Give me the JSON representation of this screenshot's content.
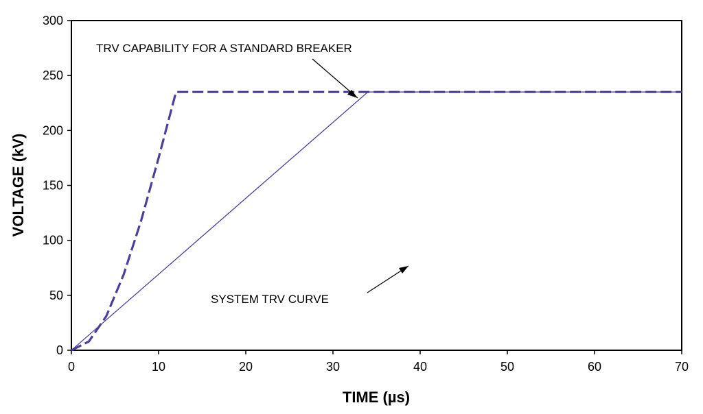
{
  "chart_data": {
    "type": "line",
    "title": "",
    "xlabel": "TIME (µs)",
    "ylabel": "VOLTAGE (kV)",
    "xlim": [
      0,
      70
    ],
    "ylim": [
      0,
      300
    ],
    "xticks": [
      "0",
      "10",
      "20",
      "30",
      "40",
      "50",
      "60",
      "70"
    ],
    "yticks": [
      "0",
      "50",
      "100",
      "150",
      "200",
      "250",
      "300"
    ],
    "grid": false,
    "legend": "none",
    "series": [
      {
        "style": "solid-thin",
        "color": "#4b3f9c",
        "x": [
          0,
          34,
          70
        ],
        "y": [
          0,
          235,
          235
        ]
      },
      {
        "style": "dashed-thick",
        "color": "#4b3f9c",
        "x": [
          0,
          2,
          4,
          6,
          8,
          10,
          12,
          14,
          16,
          18,
          20,
          22,
          24,
          26,
          28,
          30,
          32,
          34,
          36,
          38,
          40,
          42,
          44,
          46,
          48,
          50,
          52,
          54,
          56,
          58,
          60,
          62,
          64,
          66,
          68,
          70
        ],
        "y": [
          0,
          8,
          31,
          69,
          118,
          175,
          235,
          235,
          235,
          235,
          235,
          235,
          235,
          235,
          235,
          235,
          235,
          235,
          235,
          235,
          235,
          235,
          235,
          235,
          235,
          235,
          235,
          235,
          235,
          235,
          235,
          235,
          235,
          235,
          235,
          235
        ]
      }
    ],
    "annotations": [
      {
        "text": "TRV CAPABILITY FOR A STANDARD BREAKER"
      },
      {
        "text": "SYSTEM TRV CURVE"
      }
    ]
  }
}
